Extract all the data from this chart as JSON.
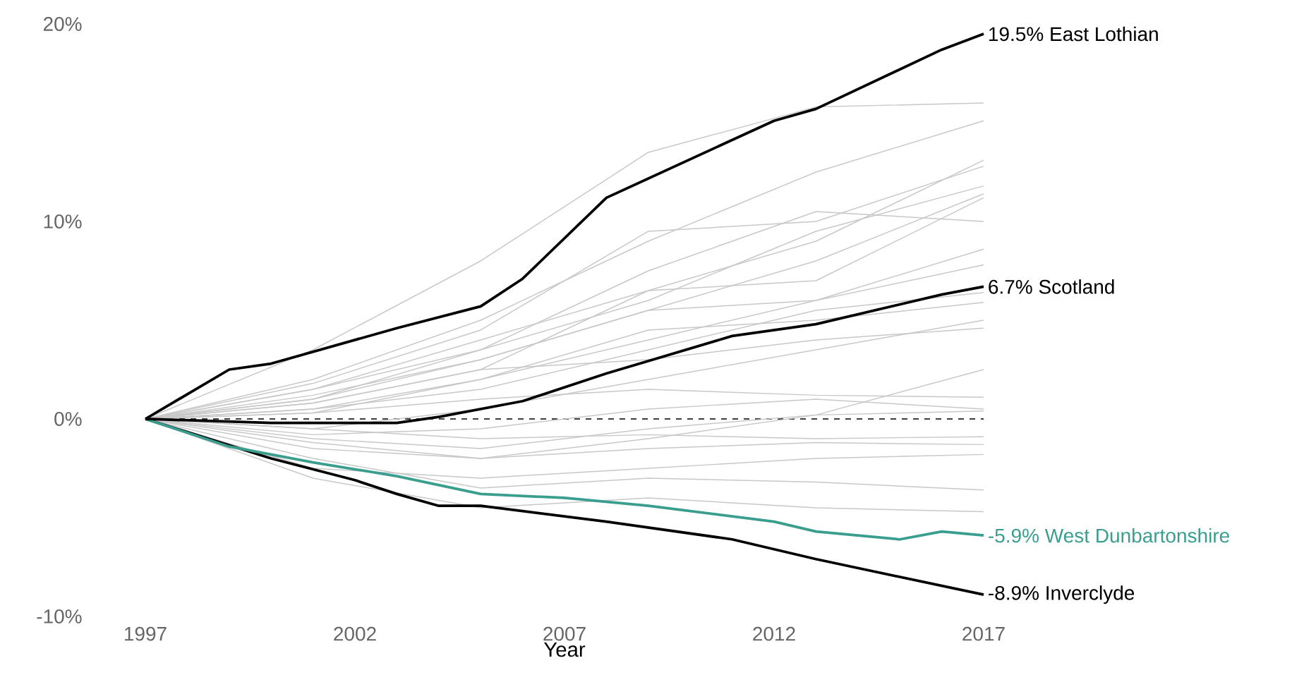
{
  "chart_data": {
    "type": "line",
    "xlabel": "Year",
    "x": [
      1997,
      2001,
      2005,
      2009,
      2013,
      2017
    ],
    "xlim": [
      1997,
      2017
    ],
    "xticks": [
      1997,
      2002,
      2007,
      2012,
      2017
    ],
    "ylim": [
      -10,
      20
    ],
    "yticks": [
      {
        "value": -10,
        "label": "-10%"
      },
      {
        "value": 0,
        "label": "0%"
      },
      {
        "value": 10,
        "label": "10%"
      },
      {
        "value": 20,
        "label": "20%"
      }
    ],
    "ref_lines": [
      {
        "axis": "y",
        "value": 0,
        "color": "#000000",
        "line_style": "dashed"
      }
    ],
    "series": [
      {
        "color": "#c8c8c8",
        "values": [
          0,
          3.5,
          8.0,
          13.5,
          15.8,
          16.0
        ]
      },
      {
        "color": "#c8c8c8",
        "values": [
          0,
          2.0,
          5.0,
          9.0,
          12.5,
          15.1
        ]
      },
      {
        "color": "#c8c8c8",
        "values": [
          0,
          1.5,
          4.0,
          6.5,
          9.0,
          13.1
        ]
      },
      {
        "color": "#c8c8c8",
        "values": [
          0,
          1.8,
          4.5,
          9.5,
          10.0,
          12.8
        ]
      },
      {
        "color": "#c8c8c8",
        "values": [
          0,
          1.0,
          3.5,
          6.0,
          9.5,
          11.8
        ]
      },
      {
        "color": "#c8c8c8",
        "values": [
          0,
          1.2,
          3.0,
          5.5,
          8.0,
          11.4
        ]
      },
      {
        "color": "#c8c8c8",
        "values": [
          0,
          0.8,
          2.5,
          6.5,
          7.0,
          11.2
        ]
      },
      {
        "color": "#c8c8c8",
        "values": [
          0,
          1.5,
          3.5,
          7.5,
          10.5,
          10.0
        ]
      },
      {
        "color": "#c8c8c8",
        "values": [
          0,
          0.5,
          2.0,
          4.0,
          6.0,
          8.6
        ]
      },
      {
        "color": "#c8c8c8",
        "values": [
          0,
          1.0,
          3.0,
          5.5,
          6.0,
          7.8
        ]
      },
      {
        "color": "#c8c8c8",
        "values": [
          0,
          0.5,
          1.5,
          3.5,
          5.5,
          6.4
        ]
      },
      {
        "color": "#c8c8c8",
        "values": [
          0,
          0.3,
          2.0,
          4.5,
          5.0,
          5.9
        ]
      },
      {
        "color": "#c8c8c8",
        "values": [
          0,
          -0.5,
          0.5,
          2.0,
          3.5,
          5.0
        ]
      },
      {
        "color": "#c8c8c8",
        "values": [
          0,
          0.8,
          2.5,
          3.0,
          4.0,
          4.6
        ]
      },
      {
        "color": "#c8c8c8",
        "values": [
          0,
          0.3,
          1.0,
          1.5,
          1.2,
          1.1
        ]
      },
      {
        "color": "#c8c8c8",
        "values": [
          0,
          -0.8,
          -0.5,
          0.5,
          1.0,
          0.5
        ]
      },
      {
        "color": "#c8c8c8",
        "values": [
          0,
          -1.0,
          -1.5,
          -0.5,
          0.2,
          0.4
        ]
      },
      {
        "color": "#c8c8c8",
        "values": [
          0,
          -0.5,
          -1.0,
          -0.8,
          -1.0,
          -0.9
        ]
      },
      {
        "color": "#c8c8c8",
        "values": [
          0,
          -1.5,
          -2.0,
          -1.5,
          -1.2,
          -1.3
        ]
      },
      {
        "color": "#c8c8c8",
        "values": [
          0,
          -2.5,
          -3.0,
          -2.5,
          -2.0,
          -1.8
        ]
      },
      {
        "color": "#c8c8c8",
        "values": [
          0,
          -2.0,
          -3.5,
          -3.0,
          -3.2,
          -3.6
        ]
      },
      {
        "color": "#c8c8c8",
        "values": [
          0,
          -3.0,
          -4.5,
          -4.0,
          -4.5,
          -4.7
        ]
      },
      {
        "color": "#c8c8c8",
        "values": [
          0,
          -1.2,
          -2.0,
          -1.0,
          0.2,
          2.5
        ]
      },
      {
        "name": "19.5% East Lothian",
        "color": "#000000",
        "x": [
          1997,
          1999,
          2000,
          2003,
          2005,
          2006,
          2008,
          2012,
          2013,
          2014,
          2016,
          2017
        ],
        "values": [
          0,
          2.5,
          2.8,
          4.6,
          5.7,
          7.1,
          11.2,
          15.1,
          15.7,
          16.7,
          18.7,
          19.5
        ]
      },
      {
        "name": "-8.9% Inverclyde",
        "color": "#000000",
        "x": [
          1997,
          2000,
          2002,
          2003,
          2004,
          2005,
          2008,
          2011,
          2013,
          2017
        ],
        "values": [
          0,
          -2.0,
          -3.1,
          -3.8,
          -4.4,
          -4.4,
          -5.2,
          -6.1,
          -7.1,
          -8.9
        ]
      },
      {
        "name": "-5.9% West Dunbartonshire",
        "color": "#3a9e8f",
        "x": [
          1997,
          1999,
          2001,
          2003,
          2005,
          2007,
          2009,
          2012,
          2013,
          2015,
          2016,
          2017
        ],
        "values": [
          0,
          -1.4,
          -2.2,
          -2.9,
          -3.8,
          -4.0,
          -4.4,
          -5.2,
          -5.7,
          -6.1,
          -5.7,
          -5.9
        ]
      },
      {
        "name": "6.7% Scotland",
        "color": "#000000",
        "x": [
          1997,
          2000,
          2003,
          2004,
          2006,
          2008,
          2011,
          2013,
          2016,
          2017
        ],
        "values": [
          0,
          -0.2,
          -0.2,
          0.1,
          0.9,
          2.3,
          4.2,
          4.8,
          6.3,
          6.7
        ]
      }
    ]
  }
}
